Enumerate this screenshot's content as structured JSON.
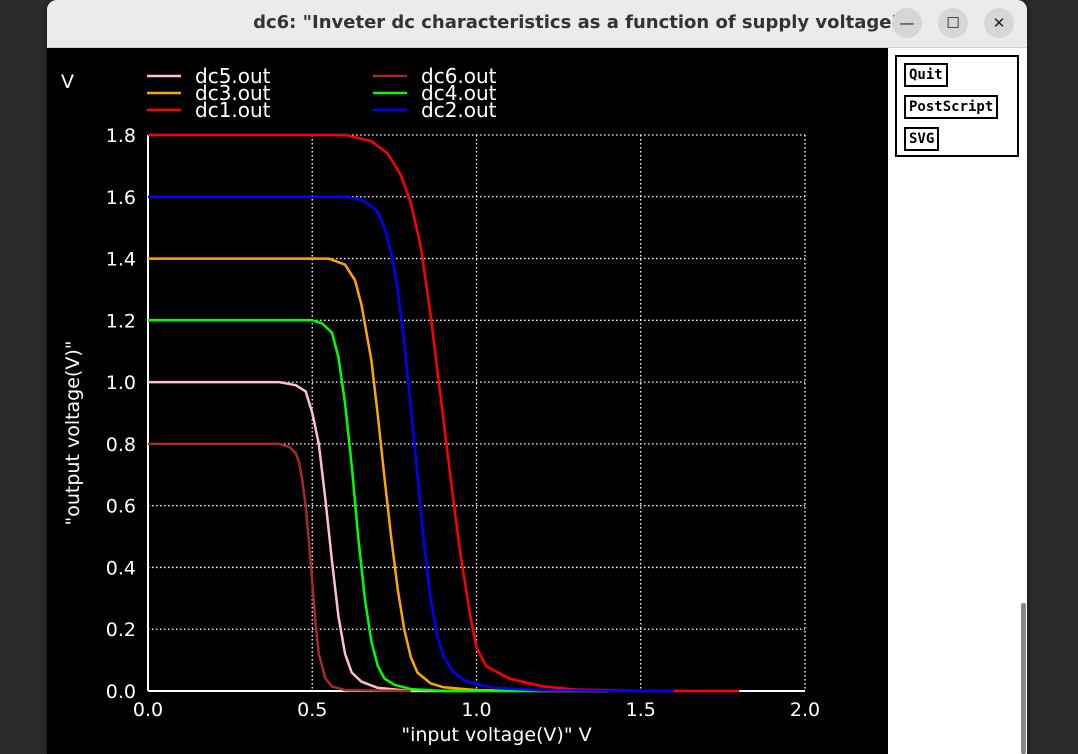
{
  "window": {
    "title": "dc6: \"Inveter dc characteristics as a function of supply voltage\"",
    "minimize_glyph": "—",
    "maximize_glyph": "☐",
    "close_glyph": "✕"
  },
  "side_panel": {
    "buttons": [
      "Quit",
      "PostScript",
      "SVG"
    ]
  },
  "chart_data": {
    "type": "line",
    "title": "",
    "xlabel": "\"input voltage(V)\"  V",
    "ylabel": "\"output voltage(V)\"",
    "y_unit": "V",
    "xlim": [
      0,
      2.0
    ],
    "ylim": [
      0,
      1.8
    ],
    "x_ticks": [
      "0.0",
      "0.5",
      "1.0",
      "1.5",
      "2.0"
    ],
    "y_ticks": [
      "0.0",
      "0.2",
      "0.4",
      "0.6",
      "0.8",
      "1.0",
      "1.2",
      "1.4",
      "1.6",
      "1.8"
    ],
    "grid": true,
    "legend_position": "top",
    "background": "#000000",
    "series": [
      {
        "name": "dc5.out",
        "color": "#ffc0cb",
        "vdd": 1.0,
        "x_end": 1.0,
        "x": [
          0,
          0.4,
          0.45,
          0.48,
          0.5,
          0.52,
          0.54,
          0.56,
          0.58,
          0.6,
          0.62,
          0.65,
          0.7,
          0.8,
          1.0
        ],
        "y": [
          1.0,
          1.0,
          0.99,
          0.97,
          0.9,
          0.8,
          0.62,
          0.42,
          0.24,
          0.12,
          0.06,
          0.03,
          0.01,
          0.0,
          0.0
        ]
      },
      {
        "name": "dc3.out",
        "color": "#ffa500",
        "vdd": 1.4,
        "x_end": 1.4,
        "x": [
          0,
          0.55,
          0.6,
          0.63,
          0.65,
          0.68,
          0.7,
          0.72,
          0.74,
          0.76,
          0.78,
          0.8,
          0.82,
          0.86,
          0.9,
          1.0,
          1.2,
          1.4
        ],
        "y": [
          1.4,
          1.4,
          1.38,
          1.33,
          1.25,
          1.07,
          0.89,
          0.69,
          0.5,
          0.33,
          0.2,
          0.11,
          0.06,
          0.025,
          0.012,
          0.003,
          0.0,
          0.0
        ]
      },
      {
        "name": "dc1.out",
        "color": "#ff0000",
        "vdd": 1.8,
        "x_end": 1.8,
        "x": [
          0,
          0.6,
          0.68,
          0.73,
          0.77,
          0.8,
          0.83,
          0.86,
          0.89,
          0.92,
          0.95,
          0.98,
          1.0,
          1.03,
          1.1,
          1.2,
          1.3,
          1.5,
          1.8
        ],
        "y": [
          1.8,
          1.8,
          1.78,
          1.74,
          1.67,
          1.58,
          1.44,
          1.22,
          0.96,
          0.7,
          0.45,
          0.25,
          0.14,
          0.08,
          0.04,
          0.015,
          0.005,
          0.0,
          0.0
        ]
      },
      {
        "name": "dc6.out",
        "color": "#a52a2a",
        "vdd": 0.8,
        "x_end": 0.8,
        "x": [
          0,
          0.4,
          0.43,
          0.45,
          0.46,
          0.47,
          0.48,
          0.49,
          0.5,
          0.51,
          0.52,
          0.54,
          0.56,
          0.6,
          0.8
        ],
        "y": [
          0.8,
          0.8,
          0.79,
          0.77,
          0.74,
          0.68,
          0.6,
          0.48,
          0.35,
          0.22,
          0.12,
          0.04,
          0.015,
          0.003,
          0.0
        ]
      },
      {
        "name": "dc4.out",
        "color": "#00ff00",
        "vdd": 1.2,
        "x_end": 1.2,
        "x": [
          0,
          0.5,
          0.53,
          0.56,
          0.58,
          0.6,
          0.62,
          0.64,
          0.66,
          0.68,
          0.7,
          0.72,
          0.75,
          0.8,
          0.9,
          1.2
        ],
        "y": [
          1.2,
          1.2,
          1.19,
          1.16,
          1.08,
          0.93,
          0.73,
          0.5,
          0.3,
          0.16,
          0.08,
          0.04,
          0.02,
          0.006,
          0.0,
          0.0
        ]
      },
      {
        "name": "dc2.out",
        "color": "#0000ff",
        "vdd": 1.6,
        "x_end": 1.6,
        "x": [
          0,
          0.6,
          0.65,
          0.68,
          0.7,
          0.72,
          0.74,
          0.76,
          0.78,
          0.8,
          0.82,
          0.84,
          0.86,
          0.88,
          0.9,
          0.93,
          0.97,
          1.05,
          1.2,
          1.6
        ],
        "y": [
          1.6,
          1.6,
          1.59,
          1.57,
          1.55,
          1.5,
          1.42,
          1.3,
          1.13,
          0.92,
          0.7,
          0.48,
          0.3,
          0.18,
          0.11,
          0.06,
          0.03,
          0.01,
          0.002,
          0.0
        ]
      }
    ]
  }
}
